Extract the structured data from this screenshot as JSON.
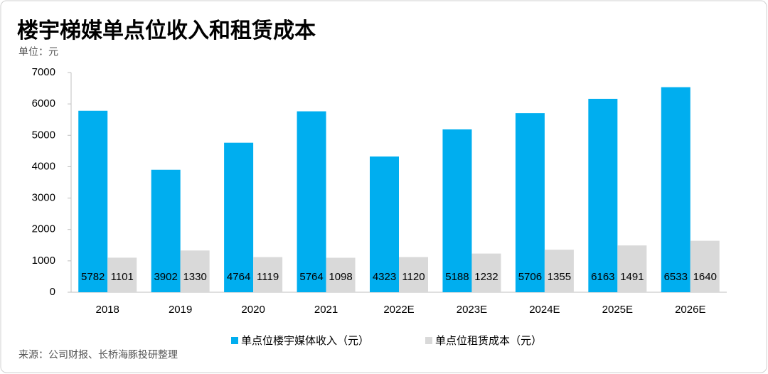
{
  "chart_data": {
    "type": "bar",
    "title": "楼宇梯媒单点位收入和租赁成本",
    "unit_label": "单位：元",
    "source": "来源：公司财报、长桥海豚投研整理",
    "categories": [
      "2018",
      "2019",
      "2020",
      "2021",
      "2022E",
      "2023E",
      "2024E",
      "2025E",
      "2026E"
    ],
    "series": [
      {
        "name": "单点位楼宇媒体收入（元）",
        "color": "#00aeef",
        "values": [
          5782,
          3902,
          4764,
          5764,
          4323,
          5188,
          5706,
          6163,
          6533
        ]
      },
      {
        "name": "单点位租赁成本（元）",
        "color": "#d9d9d9",
        "values": [
          1101,
          1330,
          1119,
          1098,
          1120,
          1232,
          1355,
          1491,
          1640
        ]
      }
    ],
    "ylim": [
      0,
      7000
    ],
    "yticks": [
      0,
      1000,
      2000,
      3000,
      4000,
      5000,
      6000,
      7000
    ],
    "legend": "bottom"
  }
}
